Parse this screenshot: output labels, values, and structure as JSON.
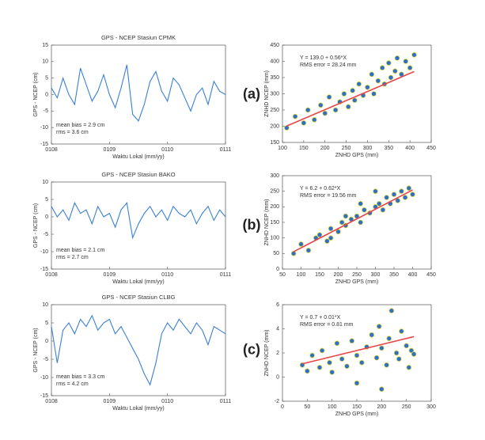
{
  "chart_data": [
    {
      "type": "line",
      "title": "GPS - NCEP Stasiun CPMK",
      "panel_label": "(a)",
      "xlabel": "Waktu Lokal (mm/yy)",
      "ylabel": "GPS - NCEP (cm)",
      "annotations": [
        "mean bias = 2.9 cm",
        "rms = 3.6 cm"
      ],
      "x": [
        0,
        0.1,
        0.2,
        0.3,
        0.4,
        0.5,
        0.6,
        0.7,
        0.8,
        0.9,
        1,
        1.1,
        1.2,
        1.3,
        1.4,
        1.5,
        1.6,
        1.7,
        1.8,
        1.9,
        2,
        2.1,
        2.2,
        2.3,
        2.4,
        2.5,
        2.6,
        2.7,
        2.8,
        2.9,
        3
      ],
      "series": [
        {
          "color": "#3a7fd5",
          "values": [
            2,
            -1,
            5,
            0,
            -3,
            8,
            3,
            -2,
            1,
            6,
            0,
            -4,
            2,
            9,
            -6,
            -8,
            -3,
            4,
            7,
            1,
            -2,
            5,
            3,
            -1,
            -5,
            0,
            2,
            -3,
            4,
            1,
            0
          ]
        }
      ],
      "xlim": [
        0,
        3
      ],
      "xticks": [
        {
          "value": 0,
          "label": "0108"
        },
        {
          "value": 1,
          "label": "0109"
        },
        {
          "value": 2,
          "label": "0110"
        },
        {
          "value": 3,
          "label": "0111"
        }
      ],
      "ylim": [
        -15,
        15
      ],
      "yticks": [
        -15,
        -10,
        -5,
        0,
        5,
        10,
        15
      ]
    },
    {
      "type": "scatter",
      "xlabel": "ZNHD GPS (mm)",
      "ylabel": "ZNHD NCEP (mm)",
      "annotations": [
        "Y = 139.0 + 0.56*X",
        "RMS error = 28.24 mm"
      ],
      "x": [
        110,
        130,
        150,
        160,
        175,
        190,
        200,
        210,
        225,
        235,
        245,
        255,
        265,
        270,
        280,
        290,
        300,
        310,
        315,
        325,
        335,
        340,
        350,
        355,
        365,
        370,
        380,
        390,
        400,
        410
      ],
      "series": [
        {
          "color": "#2f6fc4",
          "values": [
            195,
            230,
            210,
            250,
            220,
            265,
            240,
            290,
            250,
            275,
            300,
            260,
            310,
            280,
            330,
            295,
            320,
            360,
            300,
            340,
            380,
            330,
            395,
            350,
            370,
            410,
            360,
            400,
            380,
            420
          ]
        }
      ],
      "fit": {
        "intercept": 139.0,
        "slope": 0.56,
        "color": "#e8454a"
      },
      "xlim": [
        100,
        450
      ],
      "xticks": [
        100,
        150,
        200,
        250,
        300,
        350,
        400,
        450
      ],
      "ylim": [
        150,
        450
      ],
      "yticks": [
        150,
        200,
        250,
        300,
        350,
        400,
        450
      ]
    },
    {
      "type": "line",
      "title": "GPS - NCEP Stasiun BAKO",
      "panel_label": "(b)",
      "xlabel": "Waktu Lokal (mm/yy)",
      "ylabel": "GPS - NCEP (cm)",
      "annotations": [
        "mean bias = 2.1 cm",
        "rms = 2.7 cm"
      ],
      "x": [
        0,
        0.1,
        0.2,
        0.3,
        0.4,
        0.5,
        0.6,
        0.7,
        0.8,
        0.9,
        1,
        1.1,
        1.2,
        1.3,
        1.4,
        1.5,
        1.6,
        1.7,
        1.8,
        1.9,
        2,
        2.1,
        2.2,
        2.3,
        2.4,
        2.5,
        2.6,
        2.7,
        2.8,
        2.9,
        3
      ],
      "series": [
        {
          "color": "#3a7fd5",
          "values": [
            3,
            0,
            2,
            -1,
            4,
            1,
            2,
            -2,
            3,
            0,
            1,
            -3,
            2,
            4,
            -6,
            -2,
            1,
            3,
            0,
            2,
            -1,
            3,
            1,
            0,
            2,
            -2,
            1,
            3,
            -1,
            2,
            0
          ]
        }
      ],
      "xlim": [
        0,
        3
      ],
      "xticks": [
        {
          "value": 0,
          "label": "0108"
        },
        {
          "value": 1,
          "label": "0109"
        },
        {
          "value": 2,
          "label": "0110"
        },
        {
          "value": 3,
          "label": "0111"
        }
      ],
      "ylim": [
        -15,
        10
      ],
      "yticks": [
        -15,
        -10,
        -5,
        0,
        5,
        10
      ]
    },
    {
      "type": "scatter",
      "xlabel": "ZNHD GPS (mm)",
      "ylabel": "ZNHD NCEP (mm)",
      "annotations": [
        "Y = 6.2 + 0.62*X",
        "RMS error = 19.56 mm"
      ],
      "x": [
        80,
        100,
        120,
        140,
        150,
        170,
        180,
        200,
        210,
        220,
        235,
        250,
        260,
        270,
        285,
        300,
        310,
        320,
        330,
        340,
        350,
        360,
        370,
        380,
        390,
        400,
        260,
        220,
        180,
        300
      ],
      "series": [
        {
          "color": "#2f6fc4",
          "values": [
            50,
            80,
            60,
            100,
            110,
            90,
            130,
            120,
            150,
            140,
            160,
            170,
            150,
            190,
            180,
            200,
            210,
            190,
            230,
            210,
            240,
            220,
            250,
            230,
            260,
            240,
            210,
            170,
            100,
            250
          ]
        }
      ],
      "fit": {
        "intercept": 6.2,
        "slope": 0.62,
        "color": "#e8454a"
      },
      "xlim": [
        50,
        450
      ],
      "xticks": [
        50,
        100,
        150,
        200,
        250,
        300,
        350,
        400,
        450
      ],
      "ylim": [
        0,
        300
      ],
      "yticks": [
        0,
        50,
        100,
        150,
        200,
        250,
        300
      ]
    },
    {
      "type": "line",
      "title": "GPS - NCEP Stasiun CLBG",
      "panel_label": "(c)",
      "xlabel": "Waktu Lokal (mm/yy)",
      "ylabel": "GPS - NCEP (cm)",
      "annotations": [
        "mean bias = 3.3 cm",
        "rms = 4.2 cm"
      ],
      "x": [
        0,
        0.1,
        0.2,
        0.3,
        0.4,
        0.5,
        0.6,
        0.7,
        0.8,
        0.9,
        1,
        1.1,
        1.2,
        1.3,
        1.4,
        1.5,
        1.6,
        1.7,
        1.8,
        1.9,
        2,
        2.1,
        2.2,
        2.3,
        2.4,
        2.5,
        2.6,
        2.7,
        2.8,
        2.9,
        3
      ],
      "series": [
        {
          "color": "#3a7fd5",
          "values": [
            4,
            -6,
            3,
            5,
            2,
            6,
            4,
            7,
            3,
            5,
            6,
            2,
            4,
            1,
            -2,
            -5,
            -9,
            -12,
            -6,
            2,
            5,
            3,
            6,
            4,
            2,
            5,
            3,
            -1,
            4,
            3,
            2
          ]
        }
      ],
      "xlim": [
        0,
        3
      ],
      "xticks": [
        {
          "value": 0,
          "label": "0108"
        },
        {
          "value": 1,
          "label": "0109"
        },
        {
          "value": 2,
          "label": "0110"
        },
        {
          "value": 3,
          "label": "0111"
        }
      ],
      "ylim": [
        -15,
        10
      ],
      "yticks": [
        -15,
        -10,
        -5,
        0,
        5,
        10
      ]
    },
    {
      "type": "scatter",
      "xlabel": "ZNHD GPS (mm)",
      "ylabel": "ZNHD NCEP (mm)",
      "annotations": [
        "Y = 0.7 + 0.01*X",
        "RMS error = 0.81 mm"
      ],
      "x": [
        40,
        50,
        60,
        75,
        80,
        95,
        100,
        110,
        120,
        130,
        140,
        150,
        160,
        170,
        180,
        190,
        195,
        200,
        210,
        215,
        220,
        230,
        235,
        240,
        250,
        255,
        260,
        265,
        150,
        200
      ],
      "series": [
        {
          "color": "#2f6fc4",
          "values": [
            1.0,
            0.5,
            1.8,
            0.8,
            2.2,
            1.2,
            0.4,
            2.8,
            1.5,
            0.9,
            3.0,
            1.8,
            1.2,
            2.5,
            3.5,
            1.6,
            4.2,
            2.4,
            1.0,
            3.2,
            5.5,
            2.0,
            1.5,
            3.8,
            2.6,
            0.8,
            2.2,
            1.9,
            -0.5,
            -1.0
          ]
        }
      ],
      "fit": {
        "intercept": 0.7,
        "slope": 0.01,
        "color": "#e8454a"
      },
      "xlim": [
        0,
        300
      ],
      "xticks": [
        0,
        50,
        100,
        150,
        200,
        250,
        300
      ],
      "ylim": [
        -2,
        6
      ],
      "yticks": [
        -2,
        0,
        2,
        4,
        6
      ]
    }
  ]
}
